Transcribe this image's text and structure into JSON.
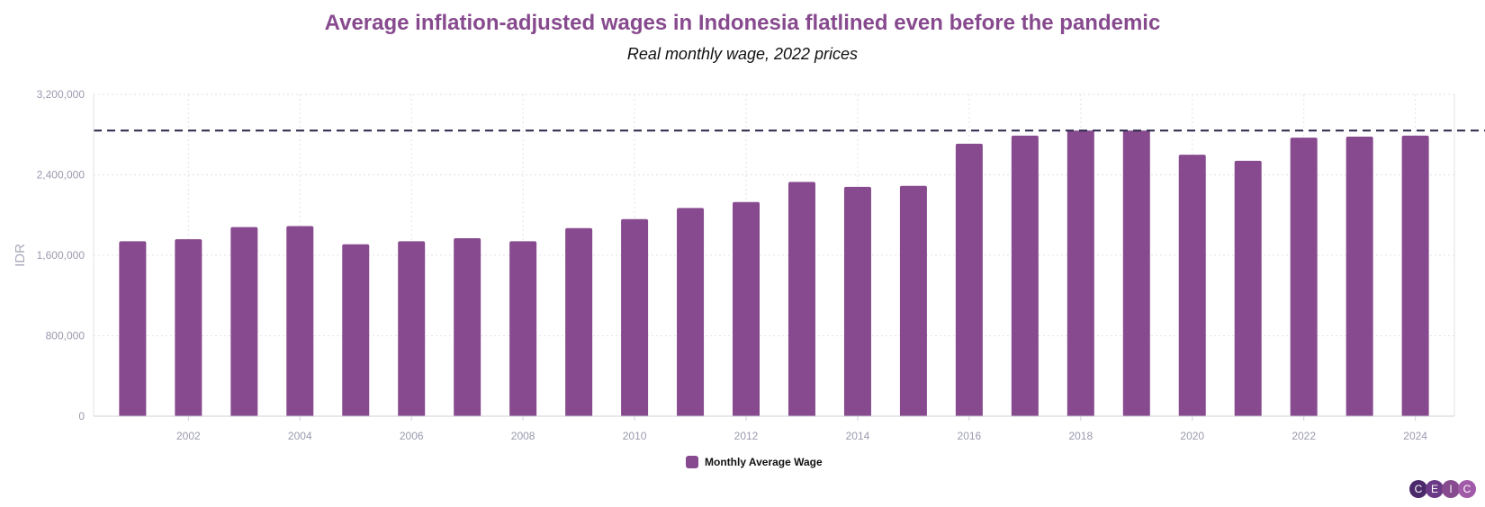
{
  "chart_data": {
    "type": "bar",
    "title": "Average inflation-adjusted wages in Indonesia flatlined even before the pandemic",
    "subtitle": "Real monthly wage, 2022 prices",
    "xlabel": "",
    "ylabel": "IDR",
    "categories": [
      2001,
      2002,
      2003,
      2004,
      2005,
      2006,
      2007,
      2008,
      2009,
      2010,
      2011,
      2012,
      2013,
      2014,
      2015,
      2016,
      2017,
      2018,
      2019,
      2020,
      2021,
      2022,
      2023,
      2024
    ],
    "series": [
      {
        "name": "Monthly Average Wage",
        "color": "#874a8e",
        "values": [
          1740000,
          1760000,
          1880000,
          1890000,
          1710000,
          1740000,
          1770000,
          1740000,
          1870000,
          1960000,
          2070000,
          2130000,
          2330000,
          2280000,
          2290000,
          2710000,
          2790000,
          2840000,
          2840000,
          2600000,
          2540000,
          2770000,
          2780000,
          2790000
        ]
      }
    ],
    "reference_line": {
      "value": 2840000,
      "style": "dashed",
      "color": "#2a2348"
    },
    "ylim": [
      0,
      3200000
    ],
    "y_ticks": [
      "0",
      "800,000",
      "1,600,000",
      "2,400,000",
      "3,200,000"
    ],
    "y_tick_values": [
      0,
      800000,
      1600000,
      2400000,
      3200000
    ],
    "x_ticks": [
      "2002",
      "2004",
      "2006",
      "2008",
      "2010",
      "2012",
      "2014",
      "2016",
      "2018",
      "2020",
      "2022",
      "2024"
    ],
    "grid": true,
    "legend_position": "bottom-center"
  },
  "legend": {
    "label": "Monthly Average Wage",
    "color": "#874a8e"
  },
  "logo": {
    "letters": [
      "C",
      "E",
      "I",
      "C"
    ],
    "colors": [
      "#4b2a6b",
      "#6b3a86",
      "#874a8e",
      "#a05aa8"
    ]
  }
}
